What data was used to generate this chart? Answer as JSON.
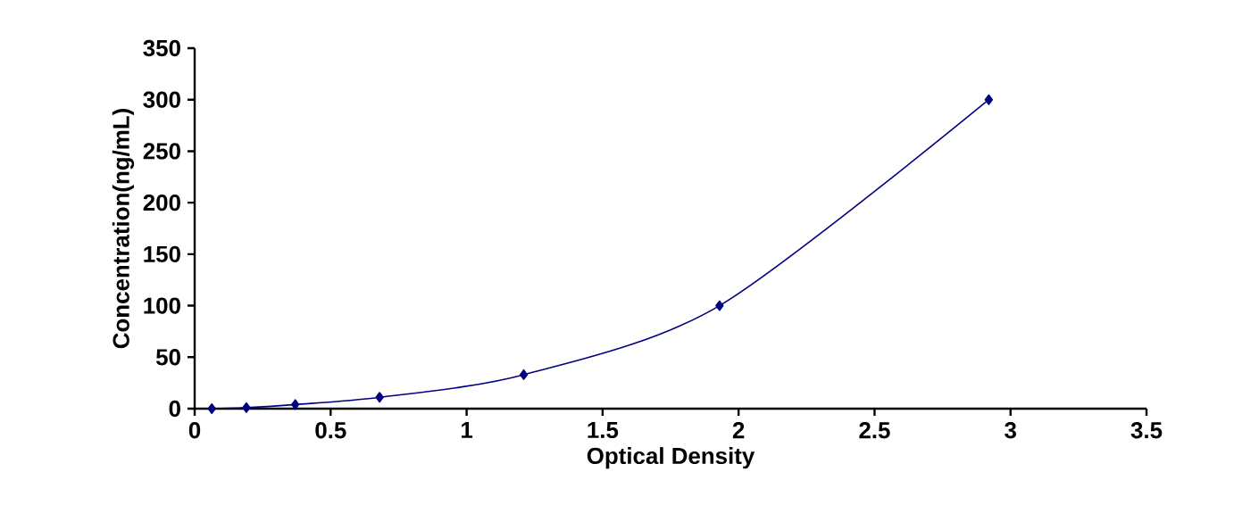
{
  "chart_data": {
    "type": "line",
    "xlabel": "Optical Density",
    "ylabel": "Concentration(ng/mL)",
    "x": [
      0.063,
      0.19,
      0.37,
      0.68,
      1.21,
      1.93,
      2.92
    ],
    "series": [
      {
        "color": "#000080",
        "values": [
          0,
          1,
          4,
          11,
          33,
          100,
          300
        ]
      }
    ],
    "xlim": [
      0,
      3.5
    ],
    "xticks": [
      0,
      0.5,
      1,
      1.5,
      2,
      2.5,
      3,
      3.5
    ],
    "ylim": [
      0,
      350
    ],
    "yticks": [
      0,
      50,
      100,
      150,
      200,
      250,
      300,
      350
    ],
    "marker": "diamond",
    "line_style": "solid"
  }
}
